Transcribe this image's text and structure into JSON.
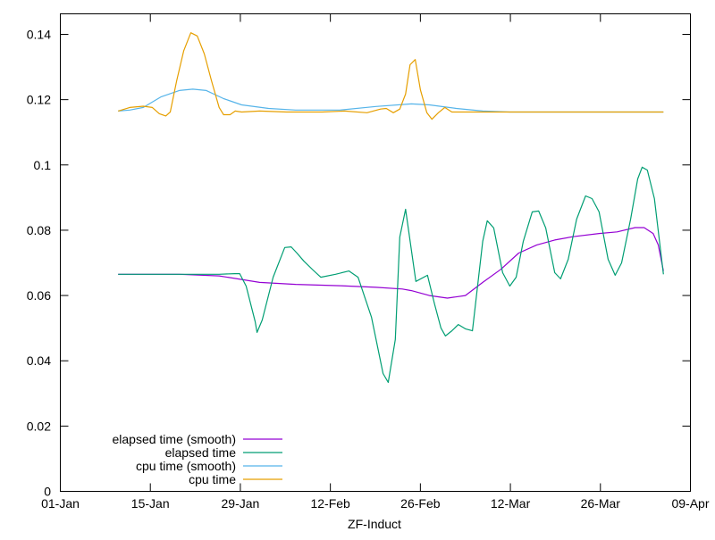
{
  "chart_data": {
    "type": "line",
    "title": "",
    "xlabel": "ZF-Induct",
    "ylabel": "",
    "x_unit": "days since 01-Jan",
    "xlim": [
      0,
      98
    ],
    "ylim": [
      0,
      0.145
    ],
    "grid": false,
    "legend_position": "bottom-left",
    "x_ticks": [
      {
        "day": 0,
        "label": "01-Jan"
      },
      {
        "day": 14,
        "label": "15-Jan"
      },
      {
        "day": 28,
        "label": "29-Jan"
      },
      {
        "day": 42,
        "label": "12-Feb"
      },
      {
        "day": 56,
        "label": "26-Feb"
      },
      {
        "day": 70,
        "label": "12-Mar"
      },
      {
        "day": 84,
        "label": "26-Mar"
      },
      {
        "day": 98,
        "label": "09-Apr"
      }
    ],
    "y_ticks": [
      {
        "value": 0,
        "label": "0"
      },
      {
        "value": 0.02,
        "label": "0.02"
      },
      {
        "value": 0.04,
        "label": "0.04"
      },
      {
        "value": 0.06,
        "label": "0.06"
      },
      {
        "value": 0.08,
        "label": "0.08"
      },
      {
        "value": 0.1,
        "label": "0.1"
      },
      {
        "value": 0.12,
        "label": "0.12"
      },
      {
        "value": 0.14,
        "label": "0.14"
      }
    ],
    "series": [
      {
        "name": "elapsed time (smooth)",
        "color": "#9400d3",
        "points": [
          [
            9.0,
            0.0665
          ],
          [
            18.5,
            0.0665
          ],
          [
            24.7,
            0.066
          ],
          [
            31.0,
            0.064
          ],
          [
            36.6,
            0.0634
          ],
          [
            43.5,
            0.063
          ],
          [
            49.1,
            0.0625
          ],
          [
            53.2,
            0.062
          ],
          [
            54.6,
            0.0615
          ],
          [
            57.4,
            0.06
          ],
          [
            60.2,
            0.0592
          ],
          [
            63.0,
            0.06
          ],
          [
            65.7,
            0.064
          ],
          [
            68.5,
            0.068
          ],
          [
            71.3,
            0.073
          ],
          [
            74.1,
            0.0755
          ],
          [
            76.9,
            0.077
          ],
          [
            79.7,
            0.078
          ],
          [
            83.8,
            0.079
          ],
          [
            86.6,
            0.0795
          ],
          [
            89.4,
            0.0808
          ],
          [
            90.8,
            0.0808
          ],
          [
            92.2,
            0.079
          ],
          [
            93.0,
            0.0755
          ],
          [
            93.8,
            0.0675
          ]
        ]
      },
      {
        "name": "elapsed time",
        "color": "#009e73",
        "points": [
          [
            9.0,
            0.0665
          ],
          [
            18.5,
            0.0665
          ],
          [
            24.7,
            0.0665
          ],
          [
            27.1,
            0.0667
          ],
          [
            27.9,
            0.0667
          ],
          [
            28.9,
            0.0629
          ],
          [
            30.3,
            0.052
          ],
          [
            30.6,
            0.0487
          ],
          [
            31.4,
            0.0525
          ],
          [
            33.1,
            0.0656
          ],
          [
            34.9,
            0.0747
          ],
          [
            35.9,
            0.0749
          ],
          [
            36.8,
            0.073
          ],
          [
            37.9,
            0.0705
          ],
          [
            39.3,
            0.0678
          ],
          [
            40.5,
            0.0656
          ],
          [
            42.8,
            0.0665
          ],
          [
            44.9,
            0.0675
          ],
          [
            46.3,
            0.0656
          ],
          [
            48.4,
            0.0533
          ],
          [
            50.2,
            0.0361
          ],
          [
            51.0,
            0.0334
          ],
          [
            52.1,
            0.0465
          ],
          [
            52.8,
            0.0779
          ],
          [
            53.7,
            0.0864
          ],
          [
            55.3,
            0.0643
          ],
          [
            57.1,
            0.0662
          ],
          [
            58.2,
            0.0574
          ],
          [
            59.2,
            0.05
          ],
          [
            59.9,
            0.0476
          ],
          [
            60.9,
            0.0492
          ],
          [
            61.9,
            0.0511
          ],
          [
            63.0,
            0.0498
          ],
          [
            64.1,
            0.0492
          ],
          [
            65.7,
            0.0766
          ],
          [
            66.4,
            0.0829
          ],
          [
            67.4,
            0.0807
          ],
          [
            68.8,
            0.067
          ],
          [
            69.9,
            0.0629
          ],
          [
            70.9,
            0.0656
          ],
          [
            72.0,
            0.0766
          ],
          [
            73.4,
            0.0856
          ],
          [
            74.4,
            0.0859
          ],
          [
            75.5,
            0.0807
          ],
          [
            76.9,
            0.067
          ],
          [
            77.8,
            0.0651
          ],
          [
            79.0,
            0.0711
          ],
          [
            80.3,
            0.0834
          ],
          [
            81.7,
            0.0905
          ],
          [
            82.7,
            0.0897
          ],
          [
            83.8,
            0.0856
          ],
          [
            85.2,
            0.0711
          ],
          [
            86.3,
            0.0662
          ],
          [
            87.3,
            0.07
          ],
          [
            88.7,
            0.0834
          ],
          [
            89.8,
            0.0957
          ],
          [
            90.5,
            0.0993
          ],
          [
            91.3,
            0.0984
          ],
          [
            92.4,
            0.0897
          ],
          [
            93.8,
            0.0665
          ]
        ]
      },
      {
        "name": "cpu time (smooth)",
        "color": "#56b4e9",
        "points": [
          [
            9.0,
            0.1165
          ],
          [
            10.8,
            0.1168
          ],
          [
            12.9,
            0.1176
          ],
          [
            15.7,
            0.1209
          ],
          [
            18.5,
            0.1228
          ],
          [
            20.6,
            0.1232
          ],
          [
            22.7,
            0.1228
          ],
          [
            25.4,
            0.1203
          ],
          [
            28.2,
            0.1184
          ],
          [
            32.4,
            0.1173
          ],
          [
            36.6,
            0.1168
          ],
          [
            43.5,
            0.1168
          ],
          [
            49.1,
            0.1179
          ],
          [
            54.6,
            0.1187
          ],
          [
            57.4,
            0.1184
          ],
          [
            61.6,
            0.1173
          ],
          [
            65.7,
            0.1165
          ],
          [
            69.9,
            0.1162
          ],
          [
            93.8,
            0.1162
          ]
        ]
      },
      {
        "name": "cpu time",
        "color": "#e69f00",
        "points": [
          [
            9.0,
            0.1165
          ],
          [
            10.8,
            0.1176
          ],
          [
            12.9,
            0.118
          ],
          [
            14.3,
            0.1176
          ],
          [
            15.4,
            0.1157
          ],
          [
            16.4,
            0.115
          ],
          [
            17.1,
            0.1162
          ],
          [
            18.1,
            0.1258
          ],
          [
            19.2,
            0.135
          ],
          [
            20.3,
            0.1405
          ],
          [
            21.3,
            0.1395
          ],
          [
            22.4,
            0.134
          ],
          [
            23.5,
            0.1258
          ],
          [
            24.7,
            0.1176
          ],
          [
            25.4,
            0.1154
          ],
          [
            26.4,
            0.1154
          ],
          [
            27.2,
            0.1165
          ],
          [
            28.2,
            0.1162
          ],
          [
            31.0,
            0.1165
          ],
          [
            35.2,
            0.1162
          ],
          [
            40.7,
            0.1162
          ],
          [
            44.2,
            0.1165
          ],
          [
            47.7,
            0.116
          ],
          [
            49.8,
            0.1171
          ],
          [
            50.7,
            0.1173
          ],
          [
            51.8,
            0.116
          ],
          [
            52.8,
            0.1171
          ],
          [
            53.7,
            0.1217
          ],
          [
            54.4,
            0.1307
          ],
          [
            55.2,
            0.1323
          ],
          [
            56.0,
            0.123
          ],
          [
            57.0,
            0.116
          ],
          [
            57.8,
            0.114
          ],
          [
            58.8,
            0.116
          ],
          [
            59.8,
            0.1176
          ],
          [
            60.9,
            0.1162
          ],
          [
            63.0,
            0.1162
          ],
          [
            65.7,
            0.1162
          ],
          [
            69.9,
            0.1162
          ],
          [
            93.8,
            0.1162
          ]
        ]
      }
    ]
  }
}
